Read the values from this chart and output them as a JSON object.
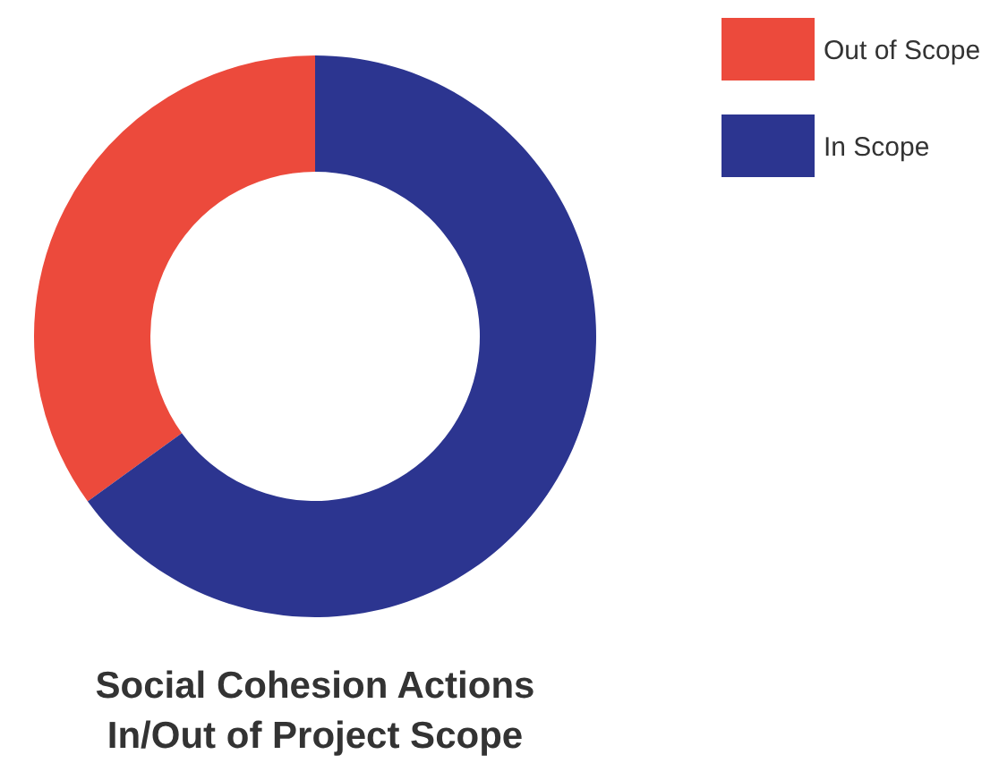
{
  "chart_data": {
    "type": "donut",
    "title": "Social Cohesion Actions\nIn/Out of Project Scope",
    "categories": [
      "Out of Scope",
      "In Scope"
    ],
    "values": [
      35,
      65
    ],
    "colors": [
      "#ec4a3c",
      "#2c3590"
    ],
    "legend": "top right"
  }
}
